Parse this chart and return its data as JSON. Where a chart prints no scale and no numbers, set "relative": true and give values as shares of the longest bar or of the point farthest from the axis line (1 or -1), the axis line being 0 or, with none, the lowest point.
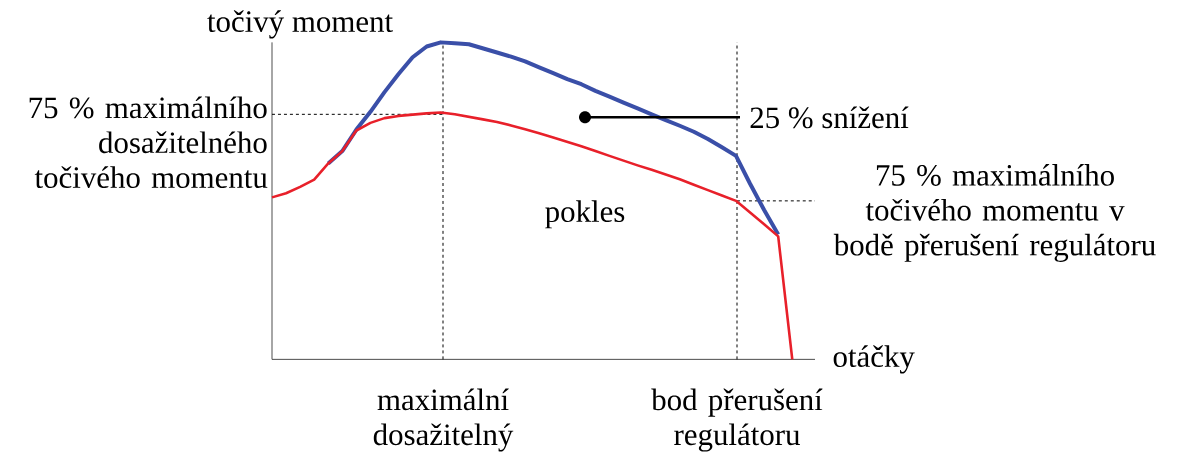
{
  "chart_data": {
    "type": "line",
    "relative": true,
    "xlabel": "otáčky",
    "ylabel": "točivý moment",
    "categories": [
      null,
      null,
      null,
      null,
      null,
      null,
      null,
      null,
      null,
      null,
      null,
      null,
      null,
      null,
      null,
      null,
      null,
      null,
      null,
      null,
      null,
      null,
      null,
      null,
      null,
      null,
      null,
      null,
      null,
      null,
      null,
      null,
      null,
      null,
      null,
      null,
      null,
      null
    ],
    "tick_labels": false,
    "marker": "none",
    "line_style": "solid",
    "series": [
      {
        "color": "#3a4fa8",
        "values": [
          null,
          null,
          null,
          null,
          0.618,
          0.657,
          0.725,
          0.781,
          0.843,
          0.9,
          0.953,
          0.987,
          1.0,
          0.997,
          0.994,
          0.981,
          0.968,
          0.955,
          0.94,
          0.921,
          0.903,
          0.884,
          0.868,
          0.847,
          0.829,
          0.81,
          0.792,
          0.773,
          0.755,
          0.737,
          0.718,
          0.695,
          0.669,
          0.642,
          0.554,
          0.471,
          0.394,
          null
        ]
      },
      {
        "color": "#e8202a",
        "values": [
          0.511,
          0.524,
          0.544,
          0.567,
          0.618,
          0.657,
          0.722,
          0.746,
          0.761,
          0.768,
          0.772,
          0.776,
          0.779,
          0.773,
          0.765,
          0.757,
          0.749,
          0.738,
          0.726,
          0.713,
          0.7,
          0.686,
          0.672,
          0.657,
          0.642,
          0.627,
          0.612,
          0.598,
          0.583,
          0.568,
          0.551,
          0.534,
          0.517,
          0.5,
          0.463,
          0.426,
          0.388,
          0
        ]
      }
    ],
    "ref_lines": [
      {
        "axis": "y",
        "value": 0.773,
        "label": "75 % maximálního dosažitelného točivého momentu",
        "line_style": "dashed"
      },
      {
        "axis": "y",
        "value": 0.5,
        "label": "75 % maximálního točivého momentu v bodě přerušení regulátoru",
        "line_style": "dashed"
      }
    ],
    "annotations": [
      "25 % snížení",
      "pokles",
      "maximální dosažitelný",
      "bod přerušení regulátoru"
    ]
  }
}
